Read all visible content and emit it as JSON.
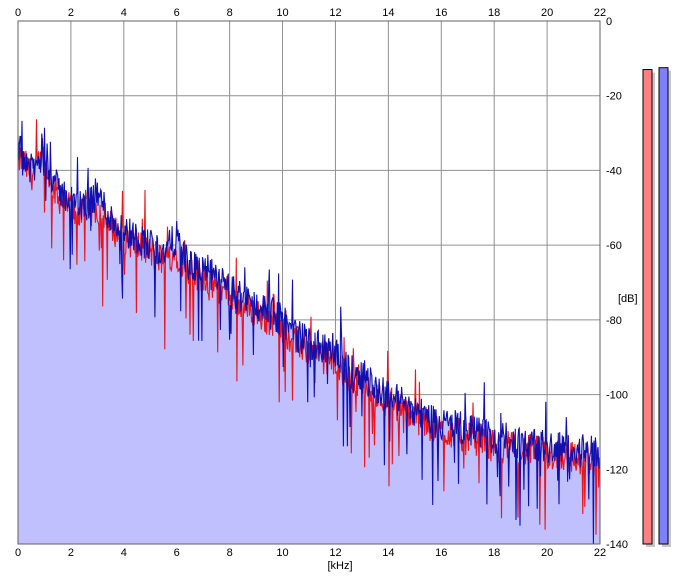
{
  "chart_data": {
    "type": "area",
    "xlabel": "[kHz]",
    "ylabel": "[dB]",
    "xlim": [
      0,
      22
    ],
    "ylim": [
      -140,
      0
    ],
    "xticks": [
      "0",
      "2",
      "4",
      "6",
      "8",
      "10",
      "12",
      "14",
      "16",
      "18",
      "20",
      "22"
    ],
    "yticks": [
      "0",
      "-20",
      "-40",
      "-60",
      "-80",
      "-100",
      "-120",
      "-140"
    ],
    "grid": true,
    "colors": {
      "background": "#ffffff",
      "grid": "#909090",
      "fill": "#c0c0ff",
      "series_red": "#e8141e",
      "series_blue": "#1010b0",
      "meter_red": "#ff8080",
      "meter_blue": "#8080ff"
    },
    "series": [
      {
        "color": "#e8141e",
        "x": [
          0.1,
          0.5,
          1,
          1.5,
          2,
          2.5,
          3,
          3.5,
          4,
          4.5,
          5,
          5.5,
          6,
          6.5,
          7,
          7.5,
          8,
          8.5,
          9,
          9.5,
          10,
          10.5,
          11,
          11.5,
          12,
          12.5,
          13,
          13.5,
          14,
          14.5,
          15,
          15.5,
          16,
          16.5,
          17,
          17.5,
          18,
          18.5,
          19,
          19.5,
          20,
          20.5,
          21,
          21.5,
          22
        ],
        "y": [
          -37,
          -41,
          -38,
          -47,
          -50,
          -52,
          -50,
          -55,
          -58,
          -60,
          -62,
          -64,
          -62,
          -68,
          -68,
          -71,
          -74,
          -76,
          -78,
          -80,
          -82,
          -86,
          -88,
          -90,
          -92,
          -96,
          -96,
          -100,
          -102,
          -104,
          -106,
          -108,
          -110,
          -110,
          -112,
          -112,
          -114,
          -114,
          -115,
          -115,
          -116,
          -116,
          -117,
          -117,
          -118
        ]
      },
      {
        "color": "#1010b0",
        "x": [
          0.1,
          0.5,
          1,
          1.5,
          2,
          2.5,
          3,
          3.5,
          4,
          4.5,
          5,
          5.5,
          6,
          6.5,
          7,
          7.5,
          8,
          8.5,
          9,
          9.5,
          10,
          10.5,
          11,
          11.5,
          12,
          12.5,
          13,
          13.5,
          14,
          14.5,
          15,
          15.5,
          16,
          16.5,
          17,
          17.5,
          18,
          18.5,
          19,
          19.5,
          20,
          20.5,
          21,
          21.5,
          22
        ],
        "y": [
          -35,
          -40,
          -37,
          -45,
          -48,
          -50,
          -46,
          -53,
          -56,
          -58,
          -60,
          -62,
          -58,
          -66,
          -66,
          -69,
          -72,
          -74,
          -76,
          -78,
          -80,
          -84,
          -86,
          -88,
          -88,
          -94,
          -94,
          -98,
          -100,
          -102,
          -104,
          -106,
          -108,
          -108,
          -110,
          -110,
          -112,
          -112,
          -113,
          -113,
          -114,
          -114,
          -115,
          -115,
          -116
        ]
      }
    ],
    "level_meters": [
      {
        "channel": "left",
        "color": "#ff8080",
        "level_db": -13
      },
      {
        "channel": "right",
        "color": "#8080ff",
        "level_db": -12.5
      }
    ]
  }
}
